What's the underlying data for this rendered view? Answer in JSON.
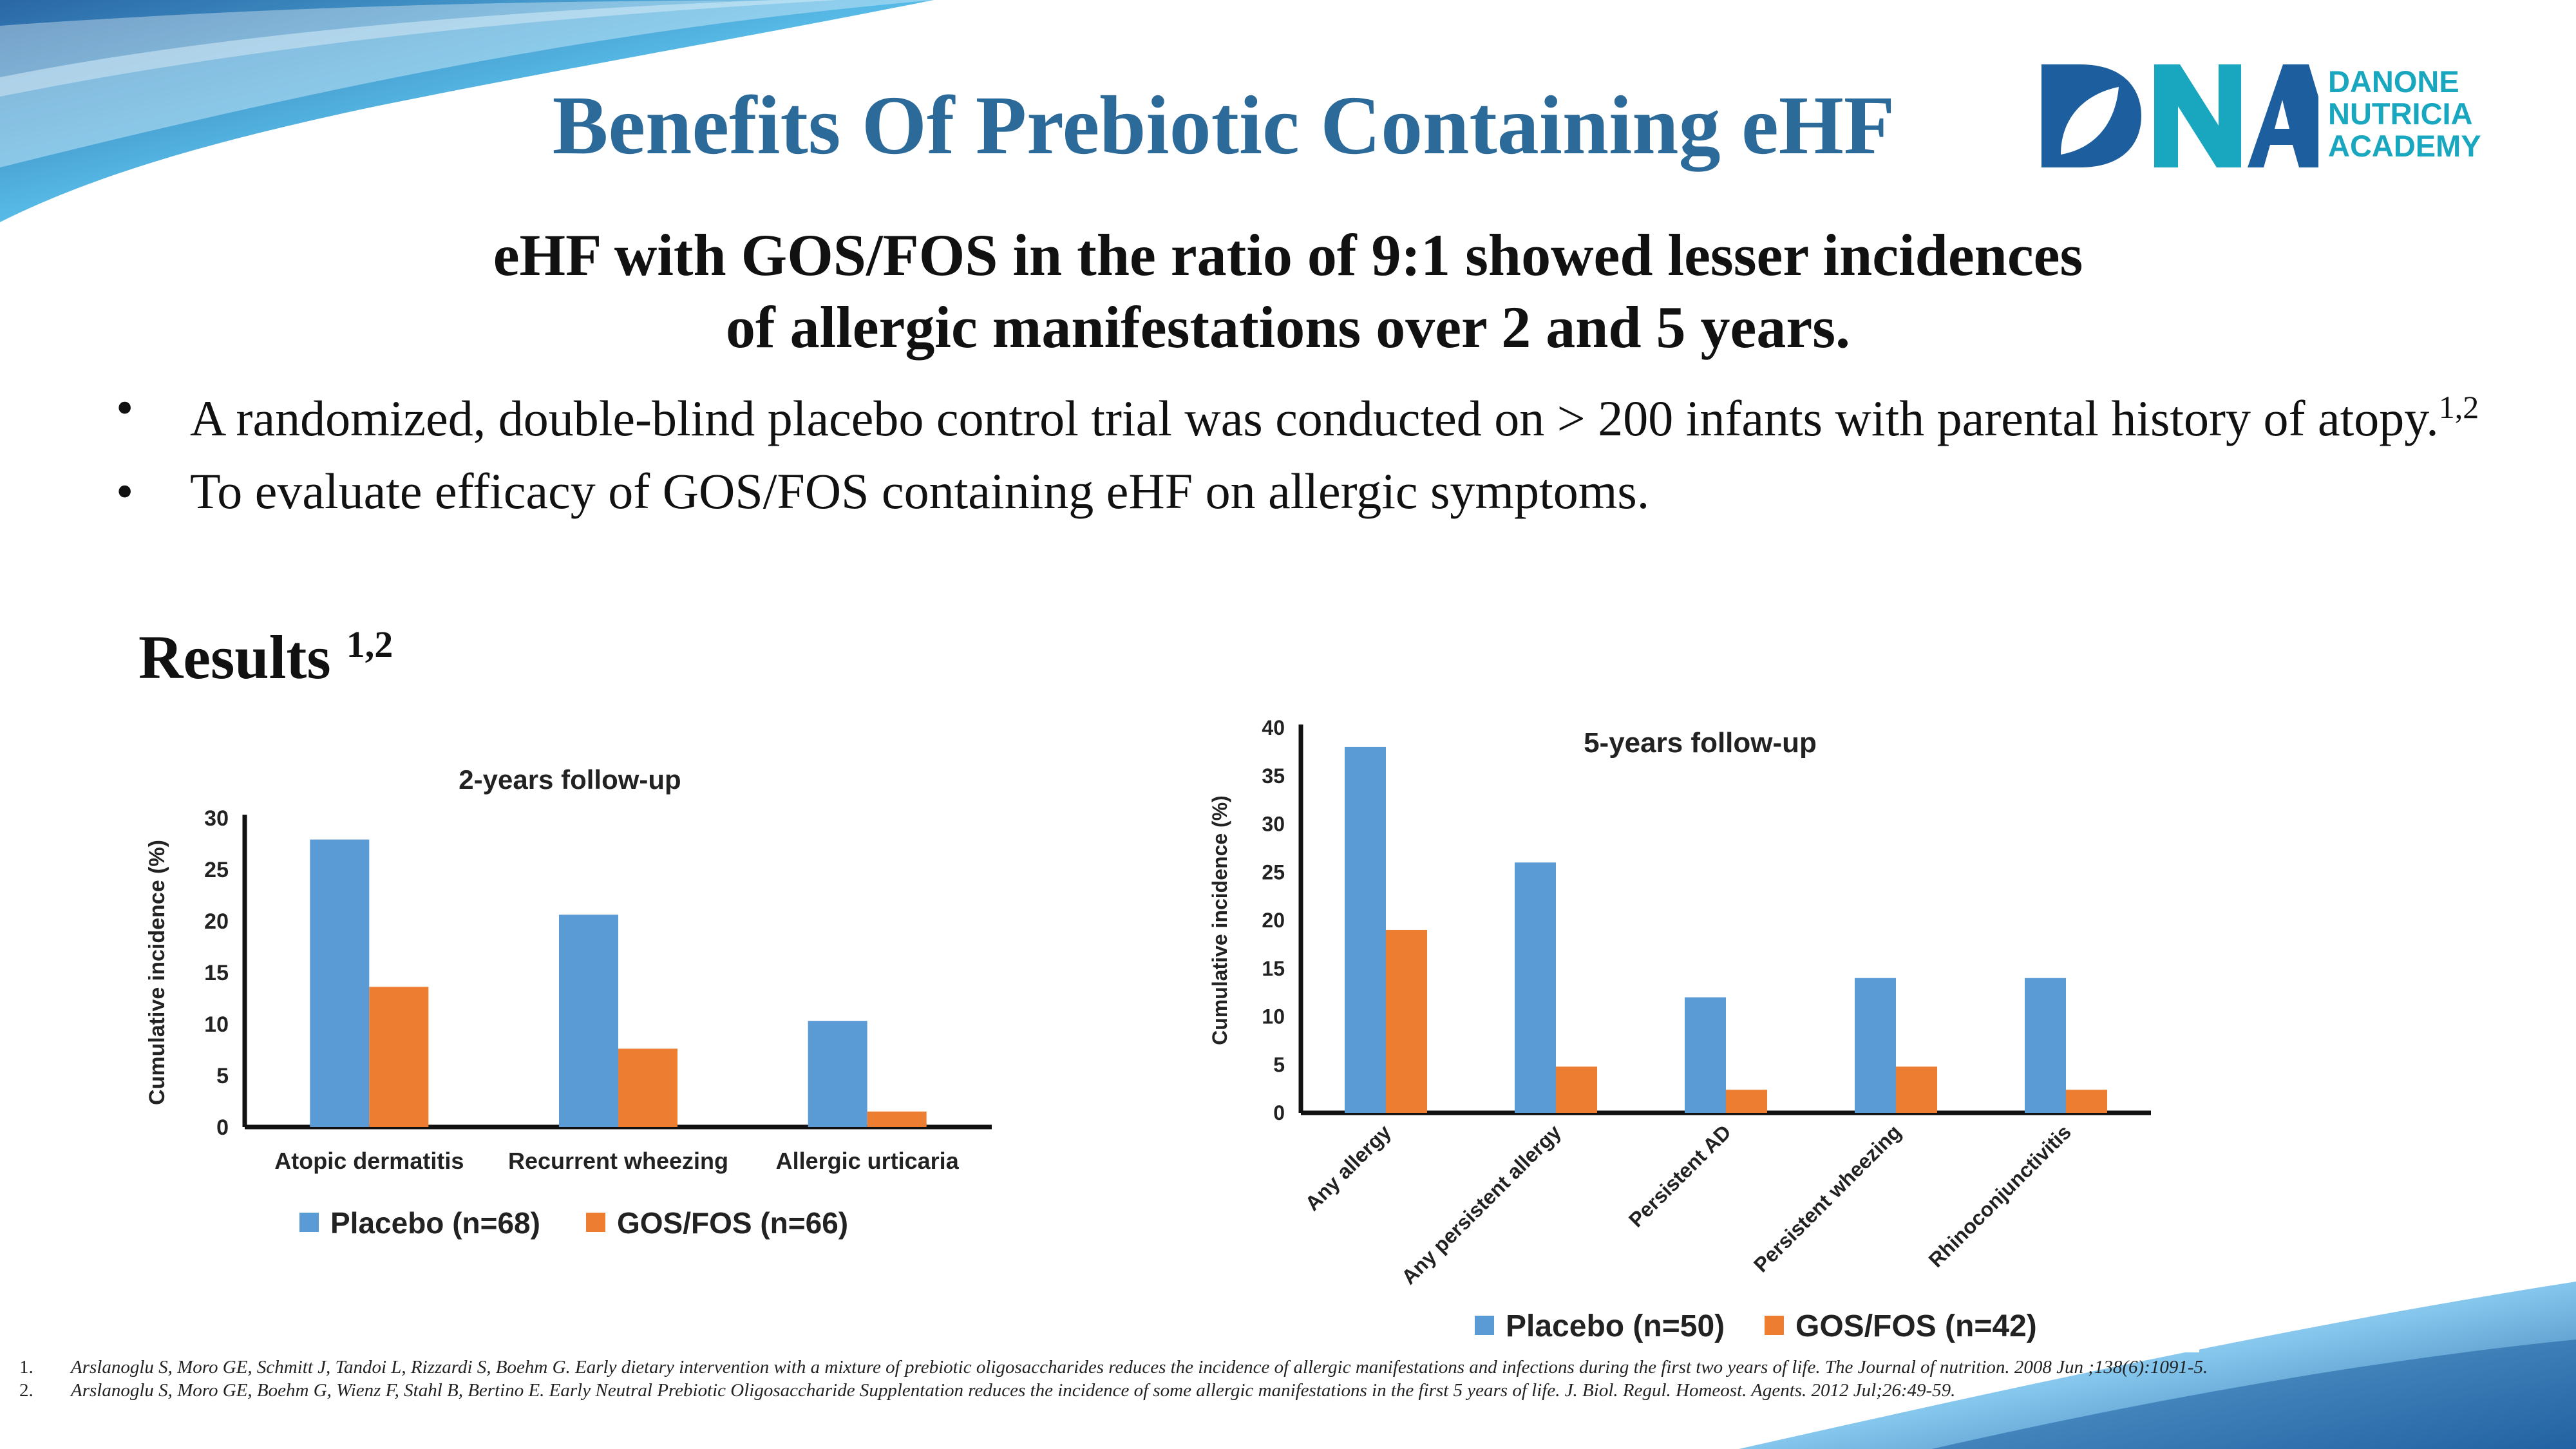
{
  "title": "Benefits Of Prebiotic Containing eHF",
  "logo": {
    "line1": "DANONE",
    "line2": "NUTRICIA",
    "line3": "ACADEMY",
    "mark_text": "DNA",
    "colors": {
      "d": "#1D5F9E",
      "n": "#19A7BF",
      "a": "#1D5F9E",
      "leaf": "#FFFFFF"
    }
  },
  "headline": {
    "line1": "eHF with GOS/FOS in the ratio of 9:1 showed lesser incidences",
    "line2": "of allergic manifestations over 2 and 5 years."
  },
  "bullets": [
    {
      "marker": "•",
      "text": "A randomized, double-blind placebo control trial was conducted on > 200 infants with parental history of atopy.",
      "sup": "1,2"
    },
    {
      "marker": "•",
      "text": "To evaluate efficacy of GOS/FOS containing eHF on allergic symptoms.",
      "sup": ""
    }
  ],
  "results": {
    "label": "Results",
    "sup": "1,2"
  },
  "chart_data": [
    {
      "type": "bar",
      "title": "2-years follow-up",
      "ylabel": "Cumulative incidence (%)",
      "xlabel": "",
      "ylim": [
        0,
        30
      ],
      "yticks": [
        0,
        5,
        10,
        15,
        20,
        25,
        30
      ],
      "categories": [
        "Atopic dermatitis",
        "Recurrent wheezing",
        "Allergic urticaria"
      ],
      "series": [
        {
          "name": "Placebo (n=68)",
          "color": "#5B9BD5",
          "values": [
            27.9,
            20.6,
            10.3
          ]
        },
        {
          "name": "GOS/FOS (n=66)",
          "color": "#ED7D31",
          "values": [
            13.6,
            7.6,
            1.5
          ]
        }
      ],
      "legend": "bottom",
      "grid": false
    },
    {
      "type": "bar",
      "title": "5-years follow-up",
      "ylabel": "Cumulative incidence (%)",
      "xlabel": "",
      "ylim": [
        0,
        40
      ],
      "yticks": [
        0,
        5,
        10,
        15,
        20,
        25,
        30,
        35,
        40
      ],
      "categories": [
        "Any allergy",
        "Any persistent allergy",
        "Persistent AD",
        "Persistent wheezing",
        "Rhinoconjunctivitis"
      ],
      "series": [
        {
          "name": "Placebo (n=50)",
          "color": "#5B9BD5",
          "values": [
            38,
            26,
            12,
            14,
            14
          ]
        },
        {
          "name": "GOS/FOS (n=42)",
          "color": "#ED7D31",
          "values": [
            19,
            4.8,
            2.4,
            4.8,
            2.4
          ]
        }
      ],
      "legend": "bottom",
      "grid": false
    }
  ],
  "references": [
    {
      "num": "1.",
      "text": "Arslanoglu S, Moro GE, Schmitt J, Tandoi L, Rizzardi S, Boehm G. Early dietary intervention with a mixture of prebiotic oligosaccharides reduces the incidence of allergic manifestations and infections during the first two years of life. The Journal of nutrition. 2008 Jun ;138(6):1091-5."
    },
    {
      "num": "2.",
      "text": "Arslanoglu S, Moro GE, Boehm G, Wienz F, Stahl B, Bertino E. Early Neutral Prebiotic Oligosaccharide Supplentation reduces the incidence of some allergic manifestations in the first 5 years of life. J. Biol. Regul. Homeost. Agents. 2012 Jul;26:49-59."
    }
  ],
  "theme": {
    "title_color": "#2C6A9A",
    "wave_dark": "#1E5FA0",
    "wave_light": "#7EC3EC",
    "wave_cyan": "#4FB8E6"
  }
}
